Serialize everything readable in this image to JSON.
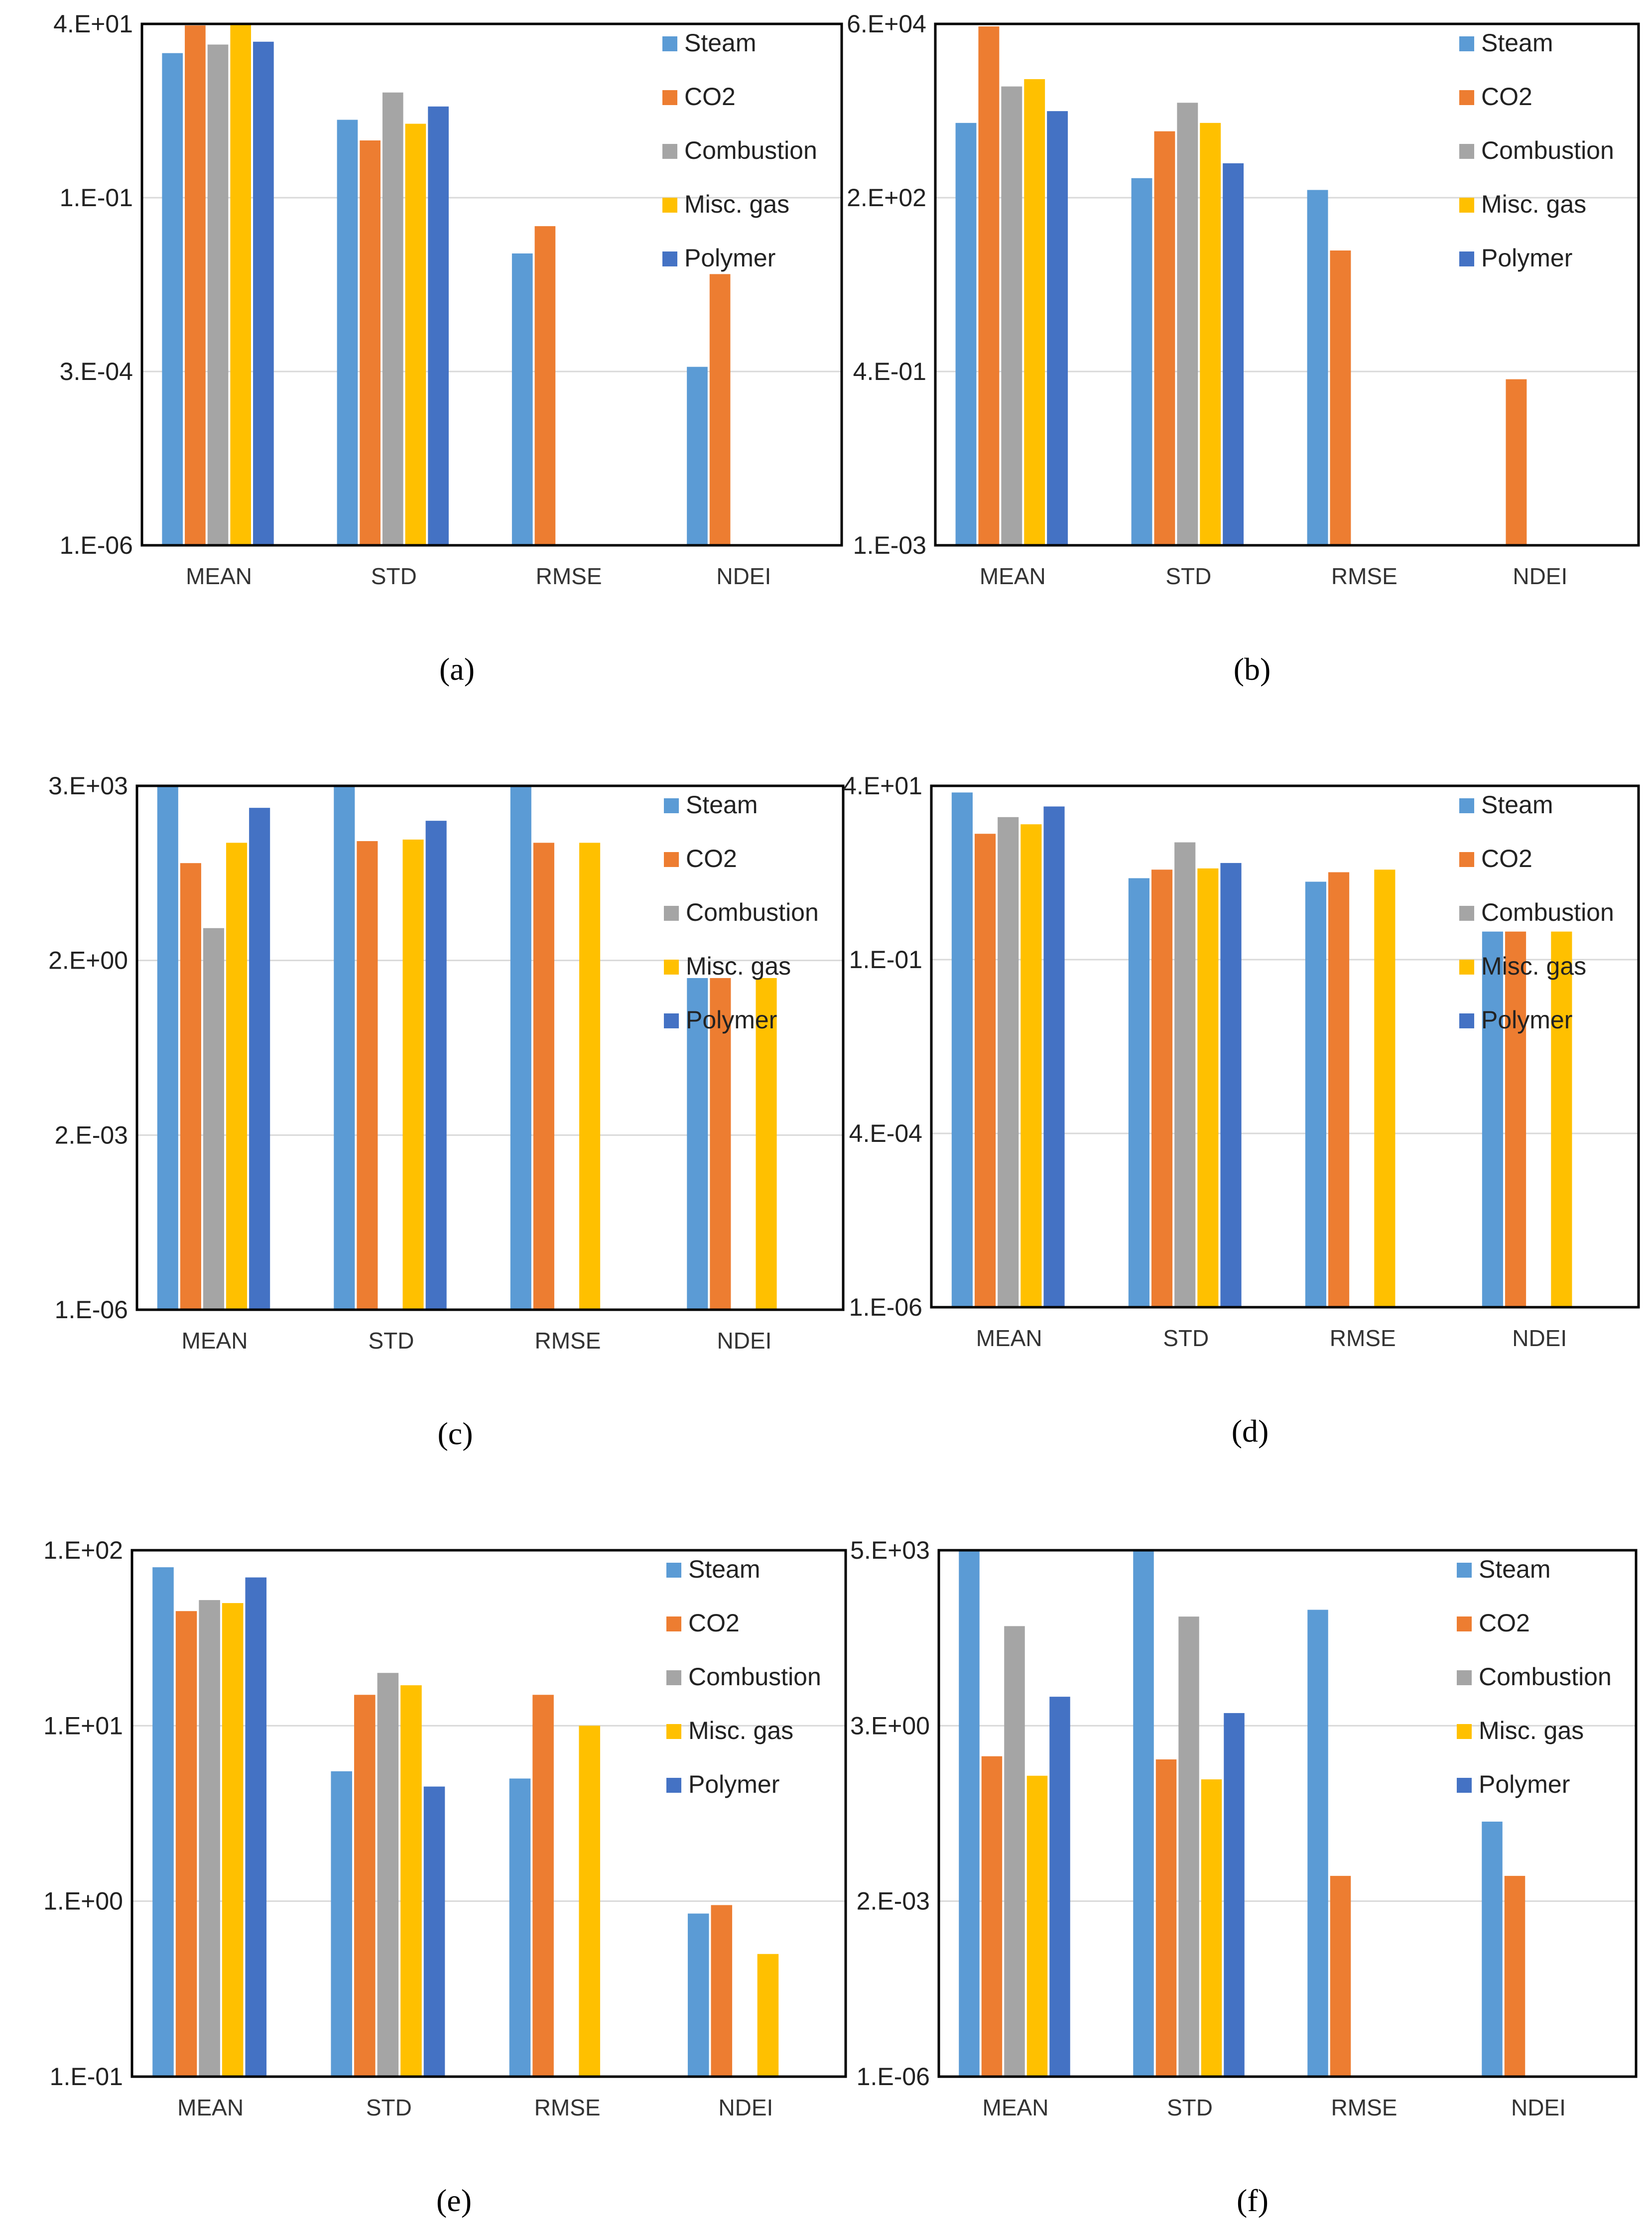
{
  "colors": {
    "Steam": "#5b9bd5",
    "CO2": "#ed7d31",
    "Combustion": "#a5a5a5",
    "Misc. gas": "#ffc000",
    "Polymer": "#4472c4",
    "gridline": "#d9d9d9",
    "frame": "#000000"
  },
  "legend_placement": "top-right inside plot",
  "chart_data": [
    {
      "type": "bar",
      "caption": "(a)",
      "scale": "log",
      "categories": [
        "MEAN",
        "STD",
        "RMSE",
        "NDEI"
      ],
      "yticks": [
        "4.E+01",
        "1.E-01",
        "3.E-04",
        "1.E-06"
      ],
      "ylim": [
        1e-06,
        40
      ],
      "grid": true,
      "series": [
        {
          "name": "Steam",
          "values": [
            15,
            1.6,
            0.018,
            0.0004
          ]
        },
        {
          "name": "CO2",
          "values": [
            38,
            0.8,
            0.045,
            0.009
          ]
        },
        {
          "name": "Combustion",
          "values": [
            20,
            4,
            null,
            null
          ]
        },
        {
          "name": "Misc. gas",
          "values": [
            39,
            1.4,
            null,
            null
          ]
        },
        {
          "name": "Polymer",
          "values": [
            22,
            2.5,
            null,
            null
          ]
        }
      ]
    },
    {
      "type": "bar",
      "caption": "(b)",
      "scale": "log",
      "categories": [
        "MEAN",
        "STD",
        "RMSE",
        "NDEI"
      ],
      "yticks": [
        "6.E+04",
        "2.E+02",
        "4.E-01",
        "1.E-03"
      ],
      "ylim": [
        0.001,
        60000
      ],
      "grid": true,
      "series": [
        {
          "name": "Steam",
          "values": [
            2000,
            300,
            200,
            null
          ]
        },
        {
          "name": "CO2",
          "values": [
            55000,
            1500,
            25,
            0.3
          ]
        },
        {
          "name": "Combustion",
          "values": [
            7000,
            4000,
            null,
            null
          ]
        },
        {
          "name": "Misc. gas",
          "values": [
            9000,
            2000,
            null,
            null
          ]
        },
        {
          "name": "Polymer",
          "values": [
            3000,
            500,
            null,
            null
          ]
        }
      ]
    },
    {
      "type": "bar",
      "caption": "(c)",
      "scale": "log",
      "categories": [
        "MEAN",
        "STD",
        "RMSE",
        "NDEI"
      ],
      "yticks": [
        "3.E+03",
        "2.E+00",
        "2.E-03",
        "1.E-06"
      ],
      "ylim": [
        1e-06,
        3000
      ],
      "grid": true,
      "series": [
        {
          "name": "Steam",
          "values": [
            3000,
            3000,
            3000,
            1
          ]
        },
        {
          "name": "CO2",
          "values": [
            120,
            300,
            280,
            1
          ]
        },
        {
          "name": "Combustion",
          "values": [
            8,
            null,
            null,
            null
          ]
        },
        {
          "name": "Misc. gas",
          "values": [
            280,
            320,
            280,
            1
          ]
        },
        {
          "name": "Polymer",
          "values": [
            1200,
            700,
            null,
            null
          ]
        }
      ]
    },
    {
      "type": "bar",
      "caption": "(d)",
      "scale": "log",
      "categories": [
        "MEAN",
        "STD",
        "RMSE",
        "NDEI"
      ],
      "yticks": [
        "4.E+01",
        "1.E-01",
        "4.E-04",
        "1.E-06"
      ],
      "ylim": [
        1e-06,
        40
      ],
      "grid": true,
      "series": [
        {
          "name": "Steam",
          "values": [
            32,
            1.8,
            1.6,
            0.3
          ]
        },
        {
          "name": "CO2",
          "values": [
            8,
            2.4,
            2.2,
            0.3
          ]
        },
        {
          "name": "Combustion",
          "values": [
            14,
            6,
            null,
            null
          ]
        },
        {
          "name": "Misc. gas",
          "values": [
            11,
            2.5,
            2.4,
            0.3
          ]
        },
        {
          "name": "Polymer",
          "values": [
            20,
            3,
            null,
            null
          ]
        }
      ]
    },
    {
      "type": "bar",
      "caption": "(e)",
      "scale": "log",
      "categories": [
        "MEAN",
        "STD",
        "RMSE",
        "NDEI"
      ],
      "yticks": [
        "1.E+02",
        "1.E+01",
        "1.E+00",
        "1.E-01"
      ],
      "ylim": [
        0.1,
        100
      ],
      "grid": true,
      "series": [
        {
          "name": "Steam",
          "values": [
            80,
            5.5,
            5,
            0.85
          ]
        },
        {
          "name": "CO2",
          "values": [
            45,
            15,
            15,
            0.95
          ]
        },
        {
          "name": "Combustion",
          "values": [
            52,
            20,
            null,
            null
          ]
        },
        {
          "name": "Misc. gas",
          "values": [
            50,
            17,
            10,
            0.5
          ]
        },
        {
          "name": "Polymer",
          "values": [
            70,
            4.5,
            null,
            null
          ]
        }
      ]
    },
    {
      "type": "bar",
      "caption": "(f)",
      "scale": "log",
      "categories": [
        "MEAN",
        "STD",
        "RMSE",
        "NDEI"
      ],
      "yticks": [
        "5.E+03",
        "3.E+00",
        "2.E-03",
        "1.E-06"
      ],
      "ylim": [
        1e-06,
        5000
      ],
      "grid": true,
      "series": [
        {
          "name": "Steam",
          "values": [
            5000,
            5000,
            400,
            0.05
          ]
        },
        {
          "name": "CO2",
          "values": [
            0.8,
            0.7,
            0.005,
            0.005
          ]
        },
        {
          "name": "Combustion",
          "values": [
            200,
            300,
            null,
            null
          ]
        },
        {
          "name": "Misc. gas",
          "values": [
            0.35,
            0.3,
            null,
            null
          ]
        },
        {
          "name": "Polymer",
          "values": [
            10,
            5,
            null,
            null
          ]
        }
      ]
    }
  ]
}
